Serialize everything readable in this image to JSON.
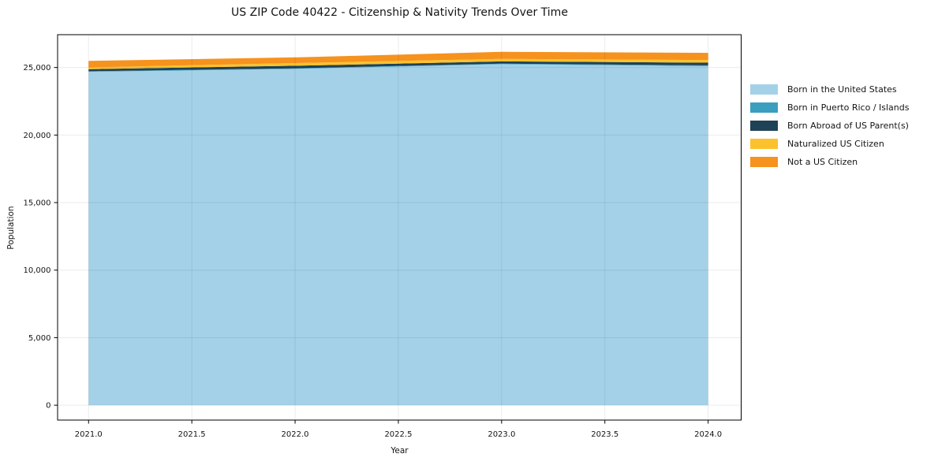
{
  "chart_data": {
    "type": "area",
    "stacked": true,
    "title": "US ZIP Code 40422 - Citizenship & Nativity Trends Over Time",
    "xlabel": "Year",
    "ylabel": "Population",
    "x": [
      2021,
      2022,
      2023,
      2024
    ],
    "series": [
      {
        "name": "Born in the United States",
        "color": "#a4d1e8",
        "values": [
          24680,
          24900,
          25250,
          25100
        ]
      },
      {
        "name": "Born in Puerto Rico / Islands",
        "color": "#3a9fbf",
        "values": [
          40,
          40,
          40,
          60
        ]
      },
      {
        "name": "Born Abroad of US Parent(s)",
        "color": "#1f4257",
        "values": [
          160,
          190,
          160,
          200
        ]
      },
      {
        "name": "Naturalized US Citizen",
        "color": "#fcc22d",
        "values": [
          130,
          200,
          190,
          190
        ]
      },
      {
        "name": "Not a US Citizen",
        "color": "#f6921e",
        "values": [
          480,
          420,
          520,
          530
        ]
      }
    ],
    "totals": [
      25490,
      25750,
      26160,
      26080
    ],
    "xticks": [
      2021.0,
      2021.5,
      2022.0,
      2022.5,
      2023.0,
      2023.5,
      2024.0
    ],
    "xtick_labels": [
      "2021.0",
      "2021.5",
      "2022.0",
      "2022.5",
      "2023.0",
      "2023.5",
      "2024.0"
    ],
    "yticks": [
      0,
      5000,
      10000,
      15000,
      20000,
      25000
    ],
    "ytick_labels": [
      "0",
      "5,000",
      "10,000",
      "15,000",
      "20,000",
      "25,000"
    ],
    "xlim": [
      2020.85,
      2024.16
    ],
    "ylim": [
      -1100,
      27430
    ],
    "grid": true,
    "legend_position": "right-upper"
  },
  "colors": {
    "background": "#ffffff",
    "spine": "#000000",
    "tick": "#000000",
    "grid": "rgba(0,0,0,0.08)",
    "text": "#141414"
  }
}
